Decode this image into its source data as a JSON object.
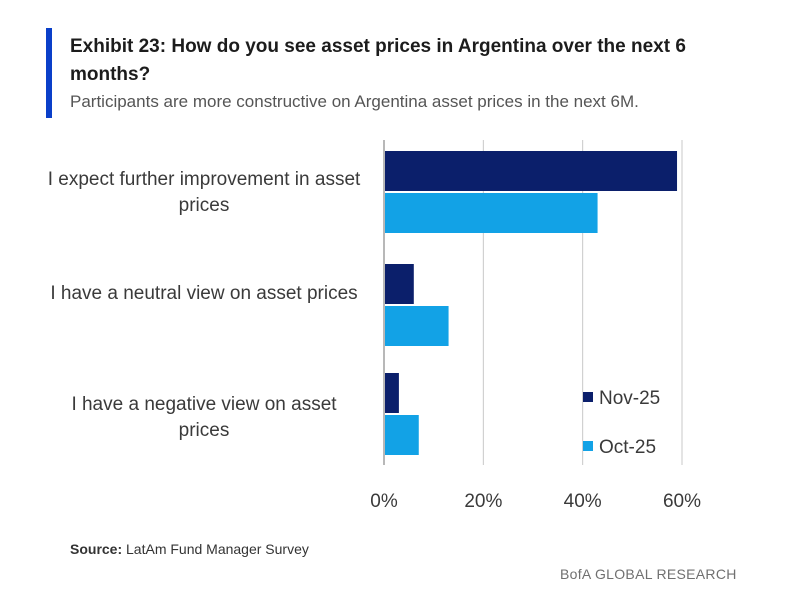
{
  "title": "Exhibit 23: How do you see asset prices in Argentina over the next 6 months?",
  "subtitle": "Participants are more constructive on Argentina asset prices in the next 6M.",
  "source_label": "Source:",
  "source_text": " LatAm Fund Manager Survey",
  "brand": "BofA GLOBAL RESEARCH",
  "colors": {
    "accent": "#0a3fc9",
    "nov": "#0b1f6b",
    "oct": "#12a2e6",
    "grid": "#c8c8c8"
  },
  "chart_data": {
    "type": "bar",
    "orientation": "horizontal",
    "categories": [
      "I expect further improvement in asset prices",
      "I have a neutral view on asset prices",
      "I have a negative view on asset prices"
    ],
    "series": [
      {
        "name": "Nov-25",
        "values": [
          59,
          6,
          3
        ],
        "color": "#0b1f6b"
      },
      {
        "name": "Oct-25",
        "values": [
          43,
          13,
          7
        ],
        "color": "#12a2e6"
      }
    ],
    "xlim": [
      0,
      60
    ],
    "xticks": [
      "0%",
      "20%",
      "40%",
      "60%"
    ],
    "grid": true,
    "legend_position": "bottom-right"
  }
}
